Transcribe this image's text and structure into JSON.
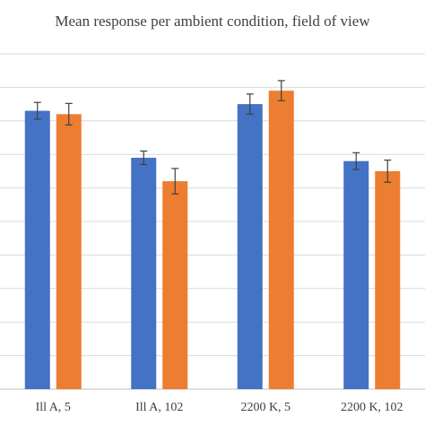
{
  "chart_data": {
    "type": "bar",
    "title": "Mean response per ambient condition, field of view",
    "categories": [
      "Ill A, 5",
      "Ill A, 102",
      "2200 K, 5",
      "2200 K, 102"
    ],
    "ylim": [
      0,
      10
    ],
    "grid": true,
    "series": [
      {
        "values": [
          8.3,
          6.9,
          8.5,
          6.8
        ],
        "errors": [
          0.25,
          0.2,
          0.3,
          0.25
        ],
        "color": "#4472C4"
      },
      {
        "values": [
          8.2,
          6.2,
          8.9,
          6.5
        ],
        "errors": [
          0.32,
          0.38,
          0.3,
          0.33
        ],
        "color": "#ED7D31"
      }
    ]
  }
}
